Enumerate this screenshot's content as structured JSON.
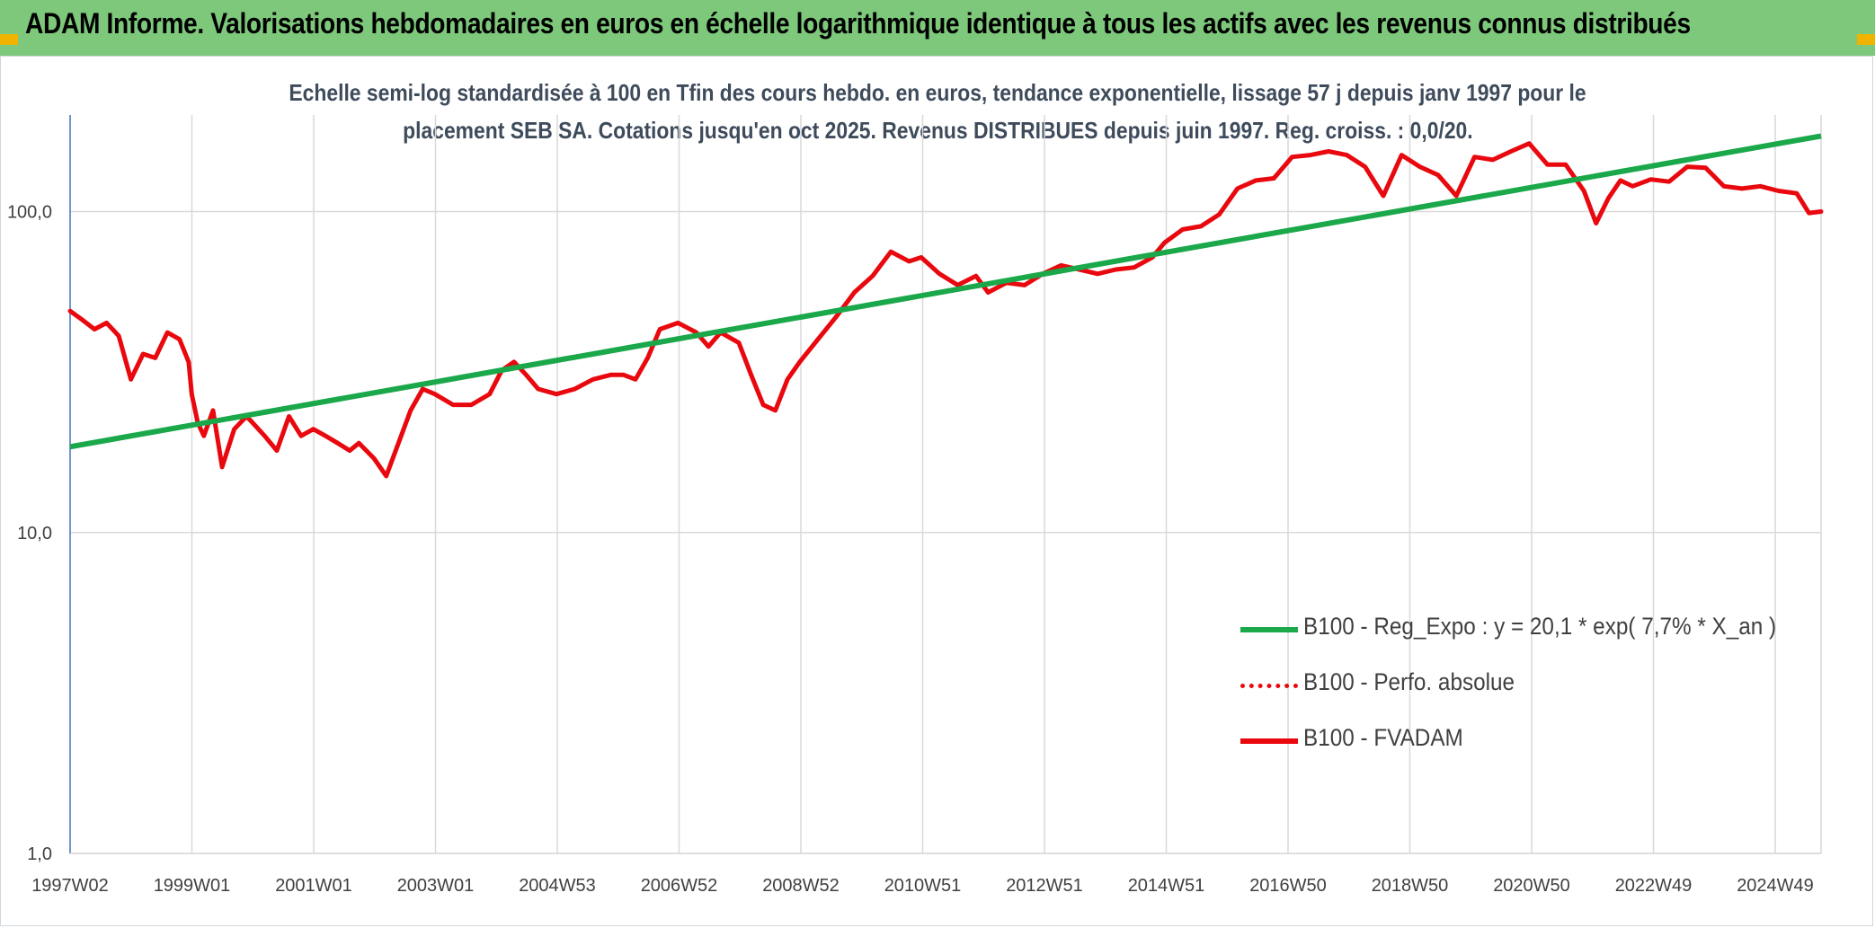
{
  "header": {
    "title": "ADAM Informe. Valorisations hebdomadaires en euros en échelle logarithmique identique à tous les actifs avec les revenus connus distribués"
  },
  "colors": {
    "title_bar": "#7dc87a",
    "corner_marks": "#f0b400",
    "trend": "#1aa84a",
    "price": "#e8080e"
  },
  "chart_data": {
    "type": "line",
    "title_line1": "Echelle semi-log standardisée à 100 en Tfin des cours hebdo. en euros, tendance exponentielle, lissage 57 j depuis janv 1997 pour le",
    "title_line2": "placement SEB SA. Cotations jusqu'en oct 2025. Revenus DISTRIBUES depuis juin 1997. Reg. croiss. : 0,0/20.",
    "y_scale": "log",
    "ylim": [
      1,
      200
    ],
    "grid": true,
    "legend_position": "bottom-right",
    "x_ticks": [
      "1997W02",
      "1999W01",
      "2001W01",
      "2003W01",
      "2004W53",
      "2006W52",
      "2008W52",
      "2010W51",
      "2012W51",
      "2014W51",
      "2016W50",
      "2018W50",
      "2020W50",
      "2022W49",
      "2024W49"
    ],
    "y_ticks": [
      "1,0",
      "10,0",
      "100,0"
    ],
    "x_range_years": [
      1997.0,
      2025.8
    ],
    "series": [
      {
        "name": "B100 - Reg_Expo : y = 20,1 * exp( 7,7% *  X_an )",
        "style": "solid",
        "color": "#1aa84a",
        "x": [
          1997.0,
          2025.8
        ],
        "y": [
          18.5,
          172
        ]
      },
      {
        "name": "B100 - Perfo. absolue",
        "style": "dotted",
        "color": "#e8080e",
        "x": [],
        "y": []
      },
      {
        "name": "B100 - FVADAM",
        "style": "solid",
        "color": "#e8080e",
        "x": [
          1997.0,
          1997.2,
          1997.4,
          1997.6,
          1997.8,
          1998.0,
          1998.2,
          1998.4,
          1998.6,
          1998.8,
          1998.95,
          1999.0,
          1999.1,
          1999.2,
          1999.35,
          1999.5,
          1999.7,
          1999.9,
          2000.0,
          2000.2,
          2000.4,
          2000.6,
          2000.8,
          2001.0,
          2001.2,
          2001.4,
          2001.6,
          2001.75,
          2002.0,
          2002.2,
          2002.4,
          2002.6,
          2002.8,
          2003.0,
          2003.3,
          2003.6,
          2003.9,
          2004.1,
          2004.3,
          2004.5,
          2004.7,
          2005.0,
          2005.3,
          2005.6,
          2005.9,
          2006.1,
          2006.3,
          2006.5,
          2006.7,
          2007.0,
          2007.3,
          2007.5,
          2007.7,
          2008.0,
          2008.2,
          2008.4,
          2008.6,
          2008.8,
          2009.0,
          2009.3,
          2009.6,
          2009.9,
          2010.2,
          2010.5,
          2010.8,
          2011.0,
          2011.3,
          2011.6,
          2011.9,
          2012.1,
          2012.4,
          2012.7,
          2013.0,
          2013.3,
          2013.6,
          2013.9,
          2014.2,
          2014.5,
          2014.8,
          2015.0,
          2015.3,
          2015.6,
          2015.9,
          2016.2,
          2016.5,
          2016.8,
          2017.1,
          2017.4,
          2017.7,
          2018.0,
          2018.3,
          2018.6,
          2018.9,
          2019.2,
          2019.5,
          2019.8,
          2020.1,
          2020.4,
          2020.7,
          2021.0,
          2021.3,
          2021.6,
          2021.9,
          2022.1,
          2022.3,
          2022.5,
          2022.7,
          2023.0,
          2023.3,
          2023.6,
          2023.9,
          2024.2,
          2024.5,
          2024.8,
          2025.1,
          2025.4,
          2025.6,
          2025.8
        ],
        "y": [
          49,
          46,
          43,
          45,
          41,
          30,
          36,
          35,
          42,
          40,
          34,
          27,
          22,
          20,
          24,
          16,
          21,
          23,
          22,
          20,
          18,
          23,
          20,
          21,
          20,
          19,
          18,
          19,
          17,
          15,
          19,
          24,
          28,
          27,
          25,
          25,
          27,
          32,
          34,
          31,
          28,
          27,
          28,
          30,
          31,
          31,
          30,
          35,
          43,
          45,
          42,
          38,
          42,
          39,
          31,
          25,
          24,
          30,
          34,
          40,
          47,
          56,
          63,
          75,
          70,
          72,
          64,
          59,
          63,
          56,
          60,
          59,
          64,
          68,
          66,
          64,
          66,
          67,
          72,
          80,
          88,
          90,
          98,
          118,
          125,
          127,
          148,
          150,
          154,
          150,
          138,
          112,
          150,
          138,
          130,
          112,
          148,
          145,
          154,
          163,
          140,
          140,
          116,
          92,
          110,
          125,
          120,
          126,
          124,
          138,
          137,
          120,
          118,
          120,
          116,
          114,
          99,
          100
        ]
      }
    ]
  }
}
